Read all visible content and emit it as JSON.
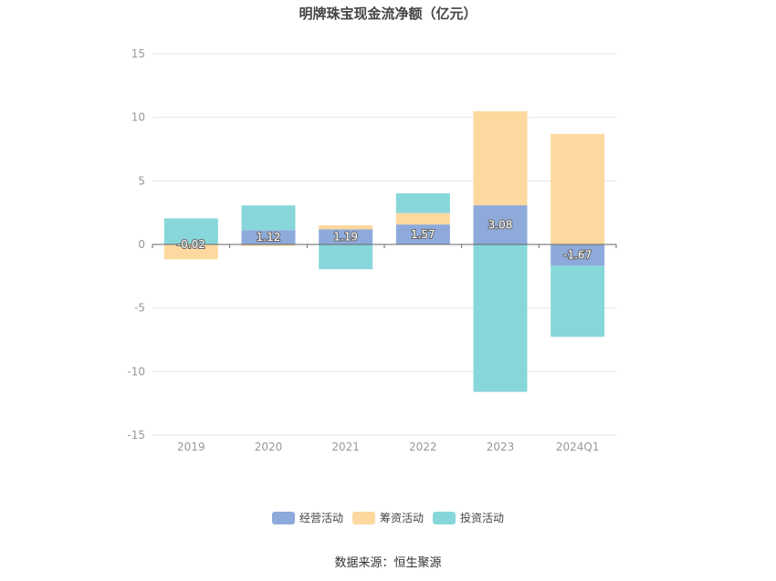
{
  "chart_data": {
    "type": "bar",
    "stacked": true,
    "title": "明牌珠宝现金流净额（亿元）",
    "categories": [
      "2019",
      "2020",
      "2021",
      "2022",
      "2023",
      "2024Q1"
    ],
    "ylim": [
      -15,
      15
    ],
    "yticks": [
      15,
      10,
      5,
      0,
      -5,
      -10,
      -15
    ],
    "grid": true,
    "legend_position": "bottom",
    "series": [
      {
        "name": "经营活动",
        "color": "#8eaadb",
        "values": [
          -0.02,
          1.12,
          1.19,
          1.57,
          3.08,
          -1.67
        ],
        "labels": [
          "-0.02",
          "1.12",
          "1.19",
          "1.57",
          "3.08",
          "-1.67"
        ]
      },
      {
        "name": "筹资活动",
        "color": "#fdd9a0",
        "values": [
          -1.15,
          -0.12,
          0.32,
          0.9,
          7.4,
          8.7
        ]
      },
      {
        "name": "投资活动",
        "color": "#87d7da",
        "values": [
          2.05,
          1.95,
          -1.95,
          1.55,
          -11.6,
          -5.6
        ]
      }
    ]
  },
  "source": "数据来源：恒生聚源"
}
